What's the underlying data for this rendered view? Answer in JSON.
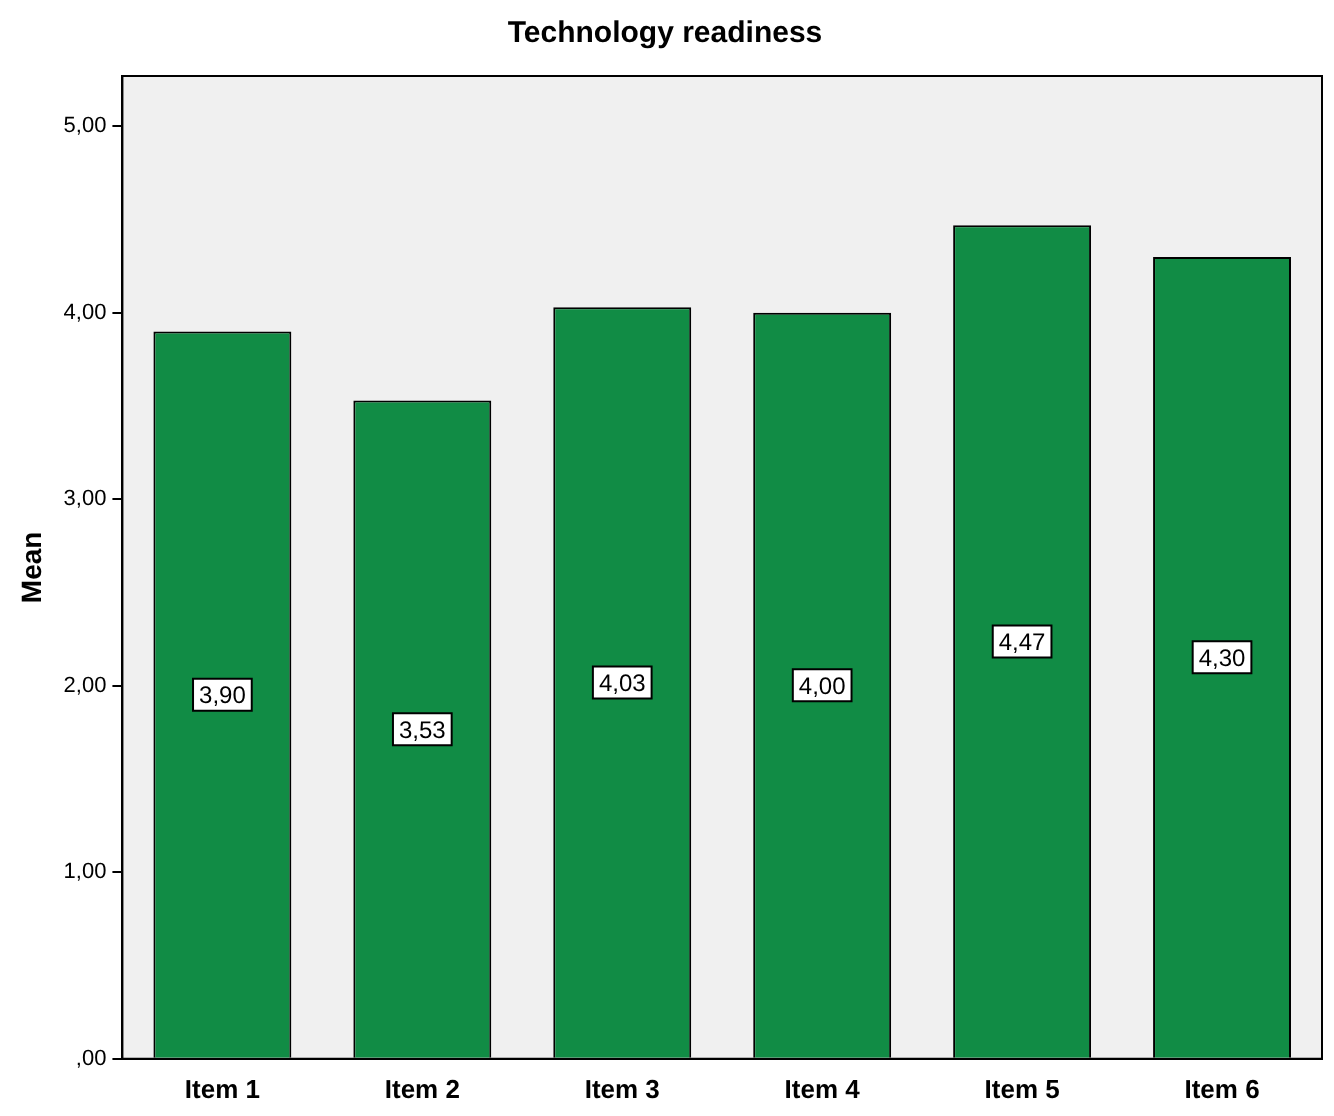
{
  "chart_data": {
    "type": "bar",
    "title": "Technology readiness",
    "ylabel": "Mean",
    "categories": [
      "Item 1",
      "Item 2",
      "Item 3",
      "Item 4",
      "Item 5",
      "Item 6"
    ],
    "values": [
      3.9,
      3.53,
      4.03,
      4.0,
      4.47,
      4.3
    ],
    "value_labels": [
      "3,90",
      "3,53",
      "4,03",
      "4,00",
      "4,47",
      "4,30"
    ],
    "color": "#118c45",
    "ylim": [
      0,
      5.27
    ],
    "yticks": [
      {
        "value": 0,
        "label": ",00"
      },
      {
        "value": 1,
        "label": "1,00"
      },
      {
        "value": 2,
        "label": "2,00"
      },
      {
        "value": 3,
        "label": "3,00"
      },
      {
        "value": 4,
        "label": "4,00"
      },
      {
        "value": 5,
        "label": "5,00"
      }
    ],
    "grid": false,
    "legend": false
  }
}
